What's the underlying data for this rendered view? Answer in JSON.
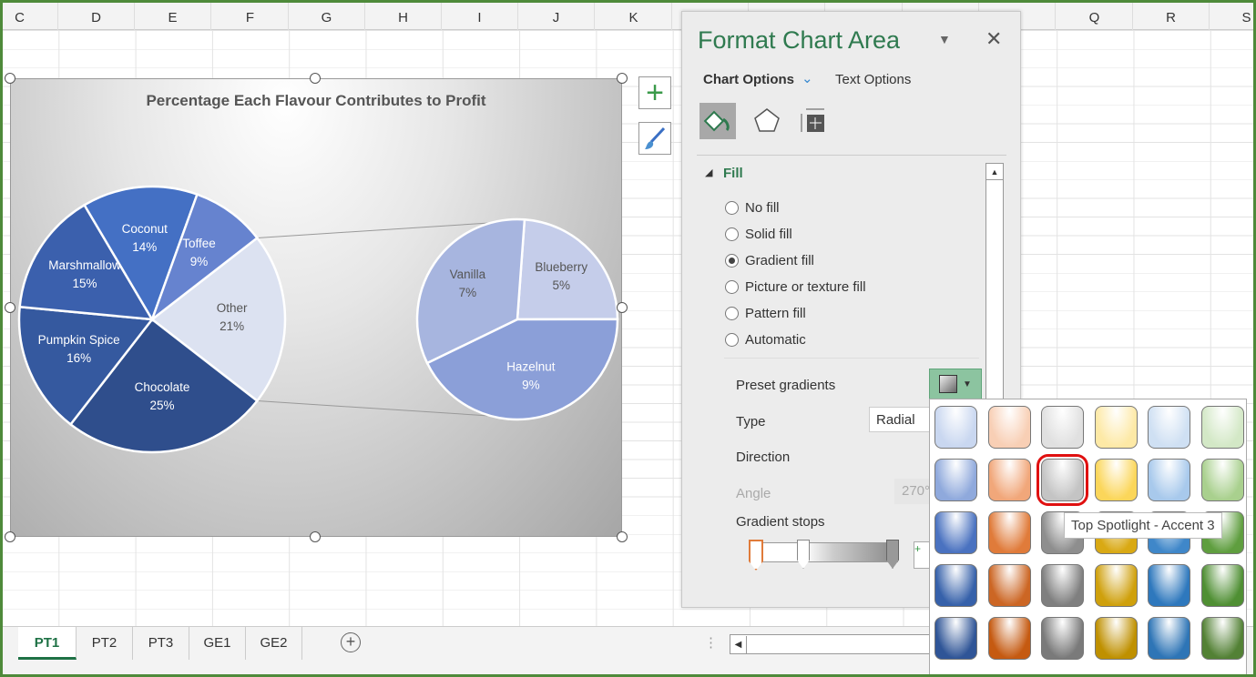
{
  "columns": [
    "C",
    "D",
    "E",
    "F",
    "G",
    "H",
    "I",
    "J",
    "K",
    "",
    "",
    "",
    "",
    "",
    "Q",
    "R",
    "S"
  ],
  "chart": {
    "title": "Percentage Each Flavour Contributes to Profit"
  },
  "chart_data": {
    "type": "pie-of-pie",
    "title": "Percentage Each Flavour Contributes to Profit",
    "primary": [
      {
        "label": "Other",
        "value": 21,
        "color": "#dce2f1"
      },
      {
        "label": "Chocolate",
        "value": 25,
        "color": "#2f4e8c"
      },
      {
        "label": "Pumpkin Spice",
        "value": 16,
        "color": "#35599f"
      },
      {
        "label": "Marshmallow",
        "value": 15,
        "color": "#3b60ad"
      },
      {
        "label": "Coconut",
        "value": 14,
        "color": "#4470c4"
      },
      {
        "label": "Toffee",
        "value": 9,
        "color": "#6683cf"
      }
    ],
    "secondary": [
      {
        "label": "Blueberry",
        "value": 5,
        "color": "#c5cdea"
      },
      {
        "label": "Hazelnut",
        "value": 9,
        "color": "#8b9fd8"
      },
      {
        "label": "Vanilla",
        "value": 7,
        "color": "#a7b5df"
      }
    ]
  },
  "panel": {
    "title": "Format Chart Area",
    "tab_chart": "Chart Options",
    "tab_text": "Text Options",
    "section": "Fill",
    "fill_options": [
      {
        "label": "No fill",
        "selected": false
      },
      {
        "label": "Solid fill",
        "selected": false
      },
      {
        "label": "Gradient fill",
        "selected": true
      },
      {
        "label": "Picture or texture fill",
        "selected": false
      },
      {
        "label": "Pattern fill",
        "selected": false
      },
      {
        "label": "Automatic",
        "selected": false
      }
    ],
    "preset_label": "Preset gradients",
    "type_label": "Type",
    "type_value": "Radial",
    "direction_label": "Direction",
    "angle_label": "Angle",
    "angle_value": "270°",
    "stops_label": "Gradient stops"
  },
  "gallery": {
    "rows": [
      [
        "#c9d7f0",
        "#f8cfb5",
        "#e0e0e0",
        "#fde9a6",
        "#cfe0f3",
        "#d3e8c6"
      ],
      [
        "#8fa9dc",
        "#f1a77a",
        "#c4c4c4",
        "#fbd65a",
        "#a8c9ec",
        "#a9d08e"
      ],
      [
        "#4a72c0",
        "#e07b3a",
        "#8e8e8e",
        "#d9a914",
        "#3f87c9",
        "#5f9e3f"
      ],
      [
        "#3661aa",
        "#cc6624",
        "#7f7f7f",
        "#cfa00c",
        "#2e78bd",
        "#4f8f33"
      ],
      [
        "#2f5597",
        "#c55a11",
        "#7a7a7a",
        "#bf9000",
        "#2e75b6",
        "#538135"
      ]
    ],
    "selected": "Top Spotlight - Accent 3",
    "tooltip": "Top Spotlight - Accent 3"
  },
  "sheets": [
    "PT1",
    "PT2",
    "PT3",
    "GE1",
    "GE2"
  ],
  "active_sheet": "PT1"
}
